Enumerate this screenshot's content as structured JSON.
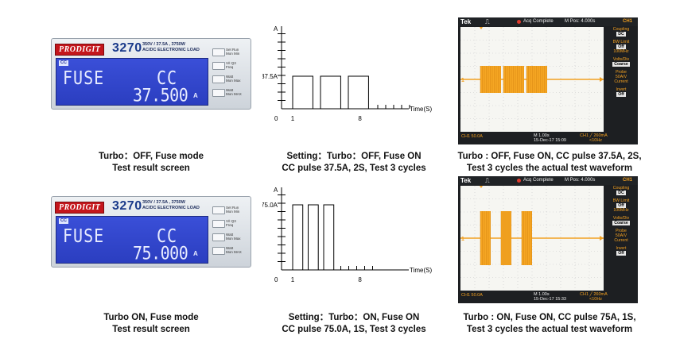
{
  "rows": [
    {
      "device": {
        "logo": "PRODIGIT",
        "model": "3270",
        "spec_line1": "350V / 37.5A , 3750W",
        "spec_line2": "AC/DC ELECTRONIC LOAD",
        "cc_tag": "CC",
        "mode_text": "FUSE",
        "cc_text": "CC",
        "value_text": "37.500",
        "unit": "A",
        "buttons": [
          "Set Run\nMon Min",
          "V/I Q3\nFreq",
          "Watt\nMon Max",
          "Watt\nMon MAX"
        ]
      },
      "device_caption": [
        "Turbo：OFF, Fuse mode",
        "Test result screen"
      ],
      "pulse": {
        "y_axis_label": "A",
        "x_axis_label": "Time(S)",
        "level_label": "37.5A",
        "origin_label": "0",
        "tick_label_1": "1",
        "tick_label_8": "8",
        "pulse_level": 37.5,
        "pulse_width_s": 2,
        "cycles": 3
      },
      "pulse_caption": [
        "Setting：Turbo：OFF, Fuse ON",
        "CC pulse 37.5A, 2S, Test 3 cycles"
      ],
      "scope": {
        "brand": "Tek",
        "status": "Acq Complete",
        "mpos": "M Pos: 4.000s",
        "channel": "CH1",
        "coupling_label": "Coupling",
        "coupling_value": "DC",
        "bw_label": "BW Limit",
        "bw_value": "Off",
        "bw_freq": "100MHz",
        "volts_label": "Volts/Div",
        "volts_value": "Coarse",
        "probe_label": "Probe",
        "probe_value": "50A/V",
        "probe_unit": "Current",
        "invert_label": "Invert",
        "invert_value": "Off",
        "ch1_scale": "CH1  50.0A",
        "timebase": "M 1.00s",
        "date": "15-Dec-17 15:09",
        "trig": "CH1 ╱ 260mA",
        "freq": "<10Hz"
      },
      "scope_caption": [
        "Turbo : OFF, Fuse ON, CC pulse 37.5A, 2S,",
        "Test 3 cycles the actual test waveform"
      ]
    },
    {
      "device": {
        "logo": "PRODIGIT",
        "model": "3270",
        "spec_line1": "350V / 37.5A , 3750W",
        "spec_line2": "AC/DC ELECTRONIC LOAD",
        "cc_tag": "CC",
        "mode_text": "FUSE",
        "cc_text": "CC",
        "value_text": "75.000",
        "unit": "A",
        "buttons": [
          "Set Run\nMon Min",
          "V/I Q3\nFreq",
          "Watt\nMon Max",
          "Watt\nMon MAX"
        ]
      },
      "device_caption": [
        "Turbo ON, Fuse mode",
        "Test result screen"
      ],
      "pulse": {
        "y_axis_label": "A",
        "x_axis_label": "Time(S)",
        "level_label": "75.0A",
        "origin_label": "0",
        "tick_label_1": "1",
        "tick_label_8": "8",
        "pulse_level": 75.0,
        "pulse_width_s": 1,
        "cycles": 3
      },
      "pulse_caption": [
        "Setting：Turbo：ON, Fuse ON",
        "CC pulse 75.0A, 1S, Test 3 cycles"
      ],
      "scope": {
        "brand": "Tek",
        "status": "Acq Complete",
        "mpos": "M Pos: 4.000s",
        "channel": "CH1",
        "coupling_label": "Coupling",
        "coupling_value": "DC",
        "bw_label": "BW Limit",
        "bw_value": "Off",
        "bw_freq": "100MHz",
        "volts_label": "Volts/Div",
        "volts_value": "Coarse",
        "probe_label": "Probe",
        "probe_value": "50A/V",
        "probe_unit": "Current",
        "invert_label": "Invert",
        "invert_value": "Off",
        "ch1_scale": "CH1  50.0A",
        "timebase": "M 1.00s",
        "date": "15-Dec-17 15:33",
        "trig": "CH1 ╱ 260mA",
        "freq": "<10Hz"
      },
      "scope_caption": [
        "Turbo : ON, Fuse ON, CC pulse 75A, 1S,",
        "Test 3 cycles the actual test waveform"
      ]
    }
  ]
}
